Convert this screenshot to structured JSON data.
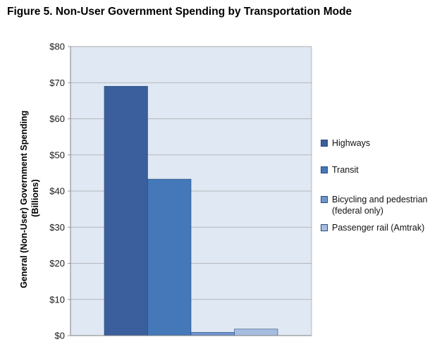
{
  "figure": {
    "title": "Figure 5. Non-User Government Spending by Transportation Mode"
  },
  "chart_data": {
    "type": "bar",
    "title": "Figure 5. Non-User Government Spending by Transportation Mode",
    "xlabel": "",
    "ylabel": "General (Non-User) Government Spending (Billions)",
    "ylabel_lines": [
      "General (Non-User) Government Spending",
      "(Billions)"
    ],
    "ylim": [
      0,
      80
    ],
    "yticks": [
      0,
      10,
      20,
      30,
      40,
      50,
      60,
      70,
      80
    ],
    "ytick_labels": [
      "$0",
      "$10",
      "$20",
      "$30",
      "$40",
      "$50",
      "$60",
      "$70",
      "$80"
    ],
    "grid": true,
    "legend_position": "right",
    "series": [
      {
        "name": "Highways",
        "value": 69,
        "color": "#3a5f9c"
      },
      {
        "name": "Transit",
        "value": 43.3,
        "color": "#4478b8"
      },
      {
        "name": "Bicycling and pedestrian (federal only)",
        "value": 0.9,
        "color": "#7095cc"
      },
      {
        "name": "Passenger rail (Amtrak)",
        "value": 1.8,
        "color": "#a6bde0"
      }
    ],
    "plot_background": "#dfe8f3"
  }
}
